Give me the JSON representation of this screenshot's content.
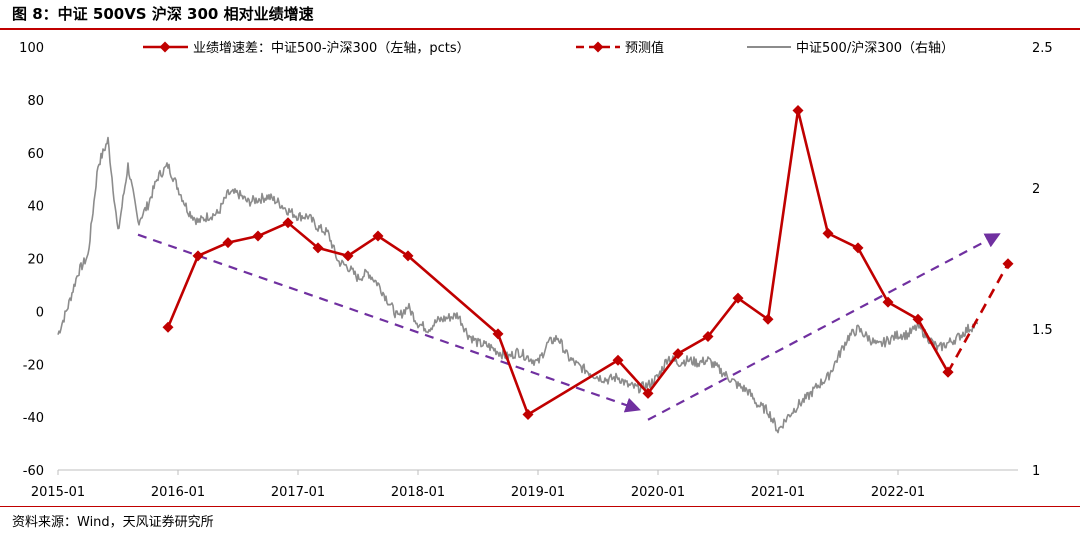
{
  "title": "图 8：中证 500VS 沪深 300 相对业绩增速",
  "source": "资料来源：Wind，天风证券研究所",
  "colors": {
    "spread": "#c00000",
    "forecast": "#c00000",
    "ratio": "#8c8c8c",
    "trend": "#7030a0",
    "accent": "#c00000"
  },
  "chart_data": {
    "type": "line",
    "title": "图 8：中证 500VS 沪深 300 相对业绩增速",
    "x_ticks": [
      "2015-01",
      "2016-01",
      "2017-01",
      "2018-01",
      "2019-01",
      "2020-01",
      "2021-01",
      "2022-01"
    ],
    "x_range": [
      "2015-01",
      "2023-01"
    ],
    "y_left": {
      "range": [
        -60,
        100
      ],
      "ticks": [
        100,
        80,
        60,
        40,
        20,
        0,
        -20,
        -40,
        -60
      ]
    },
    "y_right": {
      "range": [
        1,
        2.5
      ],
      "ticks": [
        "2.5",
        "2",
        "1.5",
        "1"
      ]
    },
    "legend": {
      "placement": "top",
      "items": [
        "业绩增速差：中证500-沪深300（左轴，pcts）",
        "预测值",
        "中证500/沪深300（右轴）"
      ]
    },
    "series": [
      {
        "name": "业绩增速差：中证500-沪深300（左轴，pcts）",
        "axis": "left",
        "style": "solid-diamond",
        "points": [
          [
            "2015-12",
            -6
          ],
          [
            "2016-03",
            21
          ],
          [
            "2016-06",
            26
          ],
          [
            "2016-09",
            28.5
          ],
          [
            "2016-12",
            33.5
          ],
          [
            "2017-03",
            24
          ],
          [
            "2017-06",
            21
          ],
          [
            "2017-09",
            28.5
          ],
          [
            "2017-12",
            21
          ],
          [
            "2018-09",
            -8.5
          ],
          [
            "2018-12",
            -39
          ],
          [
            "2019-09",
            -18.5
          ],
          [
            "2019-12",
            -31
          ],
          [
            "2020-03",
            -16
          ],
          [
            "2020-06",
            -9.5
          ],
          [
            "2020-09",
            5
          ],
          [
            "2020-12",
            -3
          ],
          [
            "2021-03",
            76
          ],
          [
            "2021-06",
            29.5
          ],
          [
            "2021-09",
            24
          ],
          [
            "2021-12",
            3.5
          ],
          [
            "2022-03",
            -3
          ],
          [
            "2022-06",
            -23
          ]
        ]
      },
      {
        "name": "预测值",
        "axis": "left",
        "style": "dashed-diamond",
        "points": [
          [
            "2022-06",
            -23
          ],
          [
            "2022-12",
            18
          ]
        ]
      },
      {
        "name": "中证500/沪深300（右轴）",
        "axis": "right",
        "style": "solid-thin",
        "points": [
          [
            "2015-01",
            1.48
          ],
          [
            "2015-02",
            1.58
          ],
          [
            "2015-03",
            1.7
          ],
          [
            "2015-04",
            1.76
          ],
          [
            "2015-05",
            2.08
          ],
          [
            "2015-06",
            2.17
          ],
          [
            "2015-07",
            1.84
          ],
          [
            "2015-08",
            2.08
          ],
          [
            "2015-09",
            1.88
          ],
          [
            "2015-10",
            1.94
          ],
          [
            "2015-11",
            2.04
          ],
          [
            "2015-12",
            2.08
          ],
          [
            "2016-01",
            2.0
          ],
          [
            "2016-02",
            1.92
          ],
          [
            "2016-03",
            1.88
          ],
          [
            "2016-04",
            1.9
          ],
          [
            "2016-05",
            1.91
          ],
          [
            "2016-06",
            1.98
          ],
          [
            "2016-07",
            1.98
          ],
          [
            "2016-08",
            1.95
          ],
          [
            "2016-09",
            1.96
          ],
          [
            "2016-10",
            1.97
          ],
          [
            "2016-11",
            1.95
          ],
          [
            "2016-12",
            1.92
          ],
          [
            "2017-01",
            1.9
          ],
          [
            "2017-02",
            1.9
          ],
          [
            "2017-03",
            1.86
          ],
          [
            "2017-04",
            1.84
          ],
          [
            "2017-05",
            1.74
          ],
          [
            "2017-06",
            1.72
          ],
          [
            "2017-07",
            1.68
          ],
          [
            "2017-08",
            1.7
          ],
          [
            "2017-09",
            1.66
          ],
          [
            "2017-10",
            1.6
          ],
          [
            "2017-11",
            1.54
          ],
          [
            "2017-12",
            1.58
          ],
          [
            "2018-01",
            1.52
          ],
          [
            "2018-02",
            1.5
          ],
          [
            "2018-03",
            1.53
          ],
          [
            "2018-04",
            1.54
          ],
          [
            "2018-05",
            1.55
          ],
          [
            "2018-06",
            1.48
          ],
          [
            "2018-07",
            1.45
          ],
          [
            "2018-08",
            1.44
          ],
          [
            "2018-09",
            1.42
          ],
          [
            "2018-10",
            1.4
          ],
          [
            "2018-11",
            1.42
          ],
          [
            "2018-12",
            1.4
          ],
          [
            "2019-01",
            1.38
          ],
          [
            "2019-02",
            1.45
          ],
          [
            "2019-03",
            1.47
          ],
          [
            "2019-04",
            1.4
          ],
          [
            "2019-05",
            1.37
          ],
          [
            "2019-06",
            1.35
          ],
          [
            "2019-07",
            1.33
          ],
          [
            "2019-08",
            1.32
          ],
          [
            "2019-09",
            1.33
          ],
          [
            "2019-10",
            1.3
          ],
          [
            "2019-11",
            1.29
          ],
          [
            "2019-12",
            1.3
          ],
          [
            "2020-01",
            1.33
          ],
          [
            "2020-02",
            1.4
          ],
          [
            "2020-03",
            1.38
          ],
          [
            "2020-04",
            1.39
          ],
          [
            "2020-05",
            1.38
          ],
          [
            "2020-06",
            1.39
          ],
          [
            "2020-07",
            1.36
          ],
          [
            "2020-08",
            1.33
          ],
          [
            "2020-09",
            1.3
          ],
          [
            "2020-10",
            1.28
          ],
          [
            "2020-11",
            1.23
          ],
          [
            "2020-12",
            1.21
          ],
          [
            "2021-01",
            1.14
          ],
          [
            "2021-02",
            1.19
          ],
          [
            "2021-03",
            1.23
          ],
          [
            "2021-04",
            1.26
          ],
          [
            "2021-05",
            1.3
          ],
          [
            "2021-06",
            1.33
          ],
          [
            "2021-07",
            1.4
          ],
          [
            "2021-08",
            1.47
          ],
          [
            "2021-09",
            1.5
          ],
          [
            "2021-10",
            1.47
          ],
          [
            "2021-11",
            1.44
          ],
          [
            "2021-12",
            1.46
          ],
          [
            "2022-01",
            1.48
          ],
          [
            "2022-02",
            1.48
          ],
          [
            "2022-03",
            1.51
          ],
          [
            "2022-04",
            1.47
          ],
          [
            "2022-05",
            1.43
          ],
          [
            "2022-06",
            1.45
          ],
          [
            "2022-07",
            1.47
          ],
          [
            "2022-08",
            1.5
          ],
          [
            "2022-09",
            1.52
          ]
        ]
      }
    ],
    "trend_lines": [
      {
        "style": "dashed-arrow",
        "from": [
          "2015-09",
          29
        ],
        "to": [
          "2019-11",
          -37
        ]
      },
      {
        "style": "dashed-arrow",
        "from": [
          "2019-12",
          -41
        ],
        "to": [
          "2022-11",
          29
        ]
      }
    ]
  }
}
